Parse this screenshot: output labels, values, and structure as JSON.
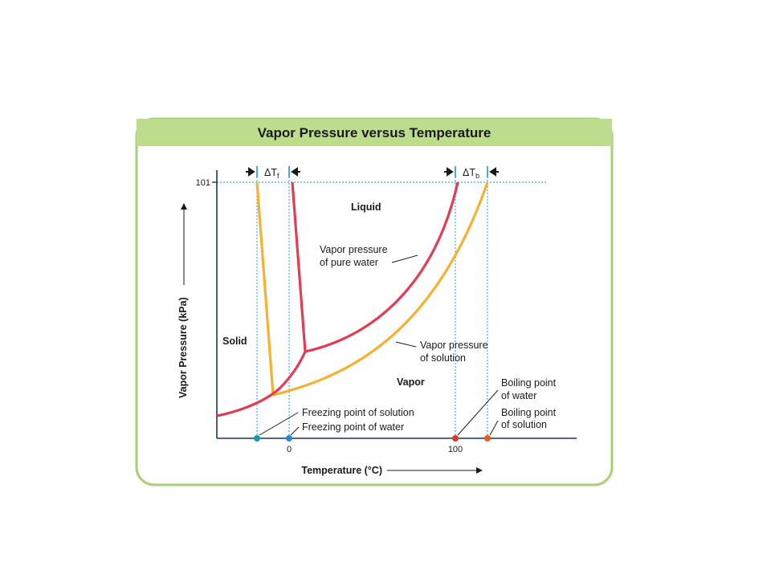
{
  "title": "Vapor Pressure versus Temperature",
  "axes": {
    "y_label": "Vapor Pressure (kPa)",
    "x_label": "Temperature (°C)",
    "y_tick": "101",
    "x_tick_0": "0",
    "x_tick_100": "100"
  },
  "regions": {
    "liquid": "Liquid",
    "solid": "Solid",
    "vapor": "Vapor"
  },
  "delta": {
    "f_main": "ΔT",
    "f_sub": "f",
    "b_main": "ΔT",
    "b_sub": "b"
  },
  "annotations": {
    "pure_water_line1": "Vapor pressure",
    "pure_water_line2": "of pure water",
    "solution_line1": "Vapor pressure",
    "solution_line2": "of solution",
    "fp_solution": "Freezing point of solution",
    "fp_water": "Freezing point of water",
    "bp_water_line1": "Boiling point",
    "bp_water_line2": "of water",
    "bp_solution_line1": "Boiling point",
    "bp_solution_line2": "of solution"
  },
  "colors": {
    "header_bg": "#bddc8e",
    "frame": "#a7cf78",
    "pure_water": "#e23c55",
    "solution": "#f5b12f",
    "guide": "#4aa8dc",
    "axis": "#1d3557",
    "fp_solution_dot": "#1a9aa8",
    "fp_water_dot": "#2a86d1",
    "bp_water_dot": "#d93a26",
    "bp_solution_dot": "#ea5a24"
  }
}
